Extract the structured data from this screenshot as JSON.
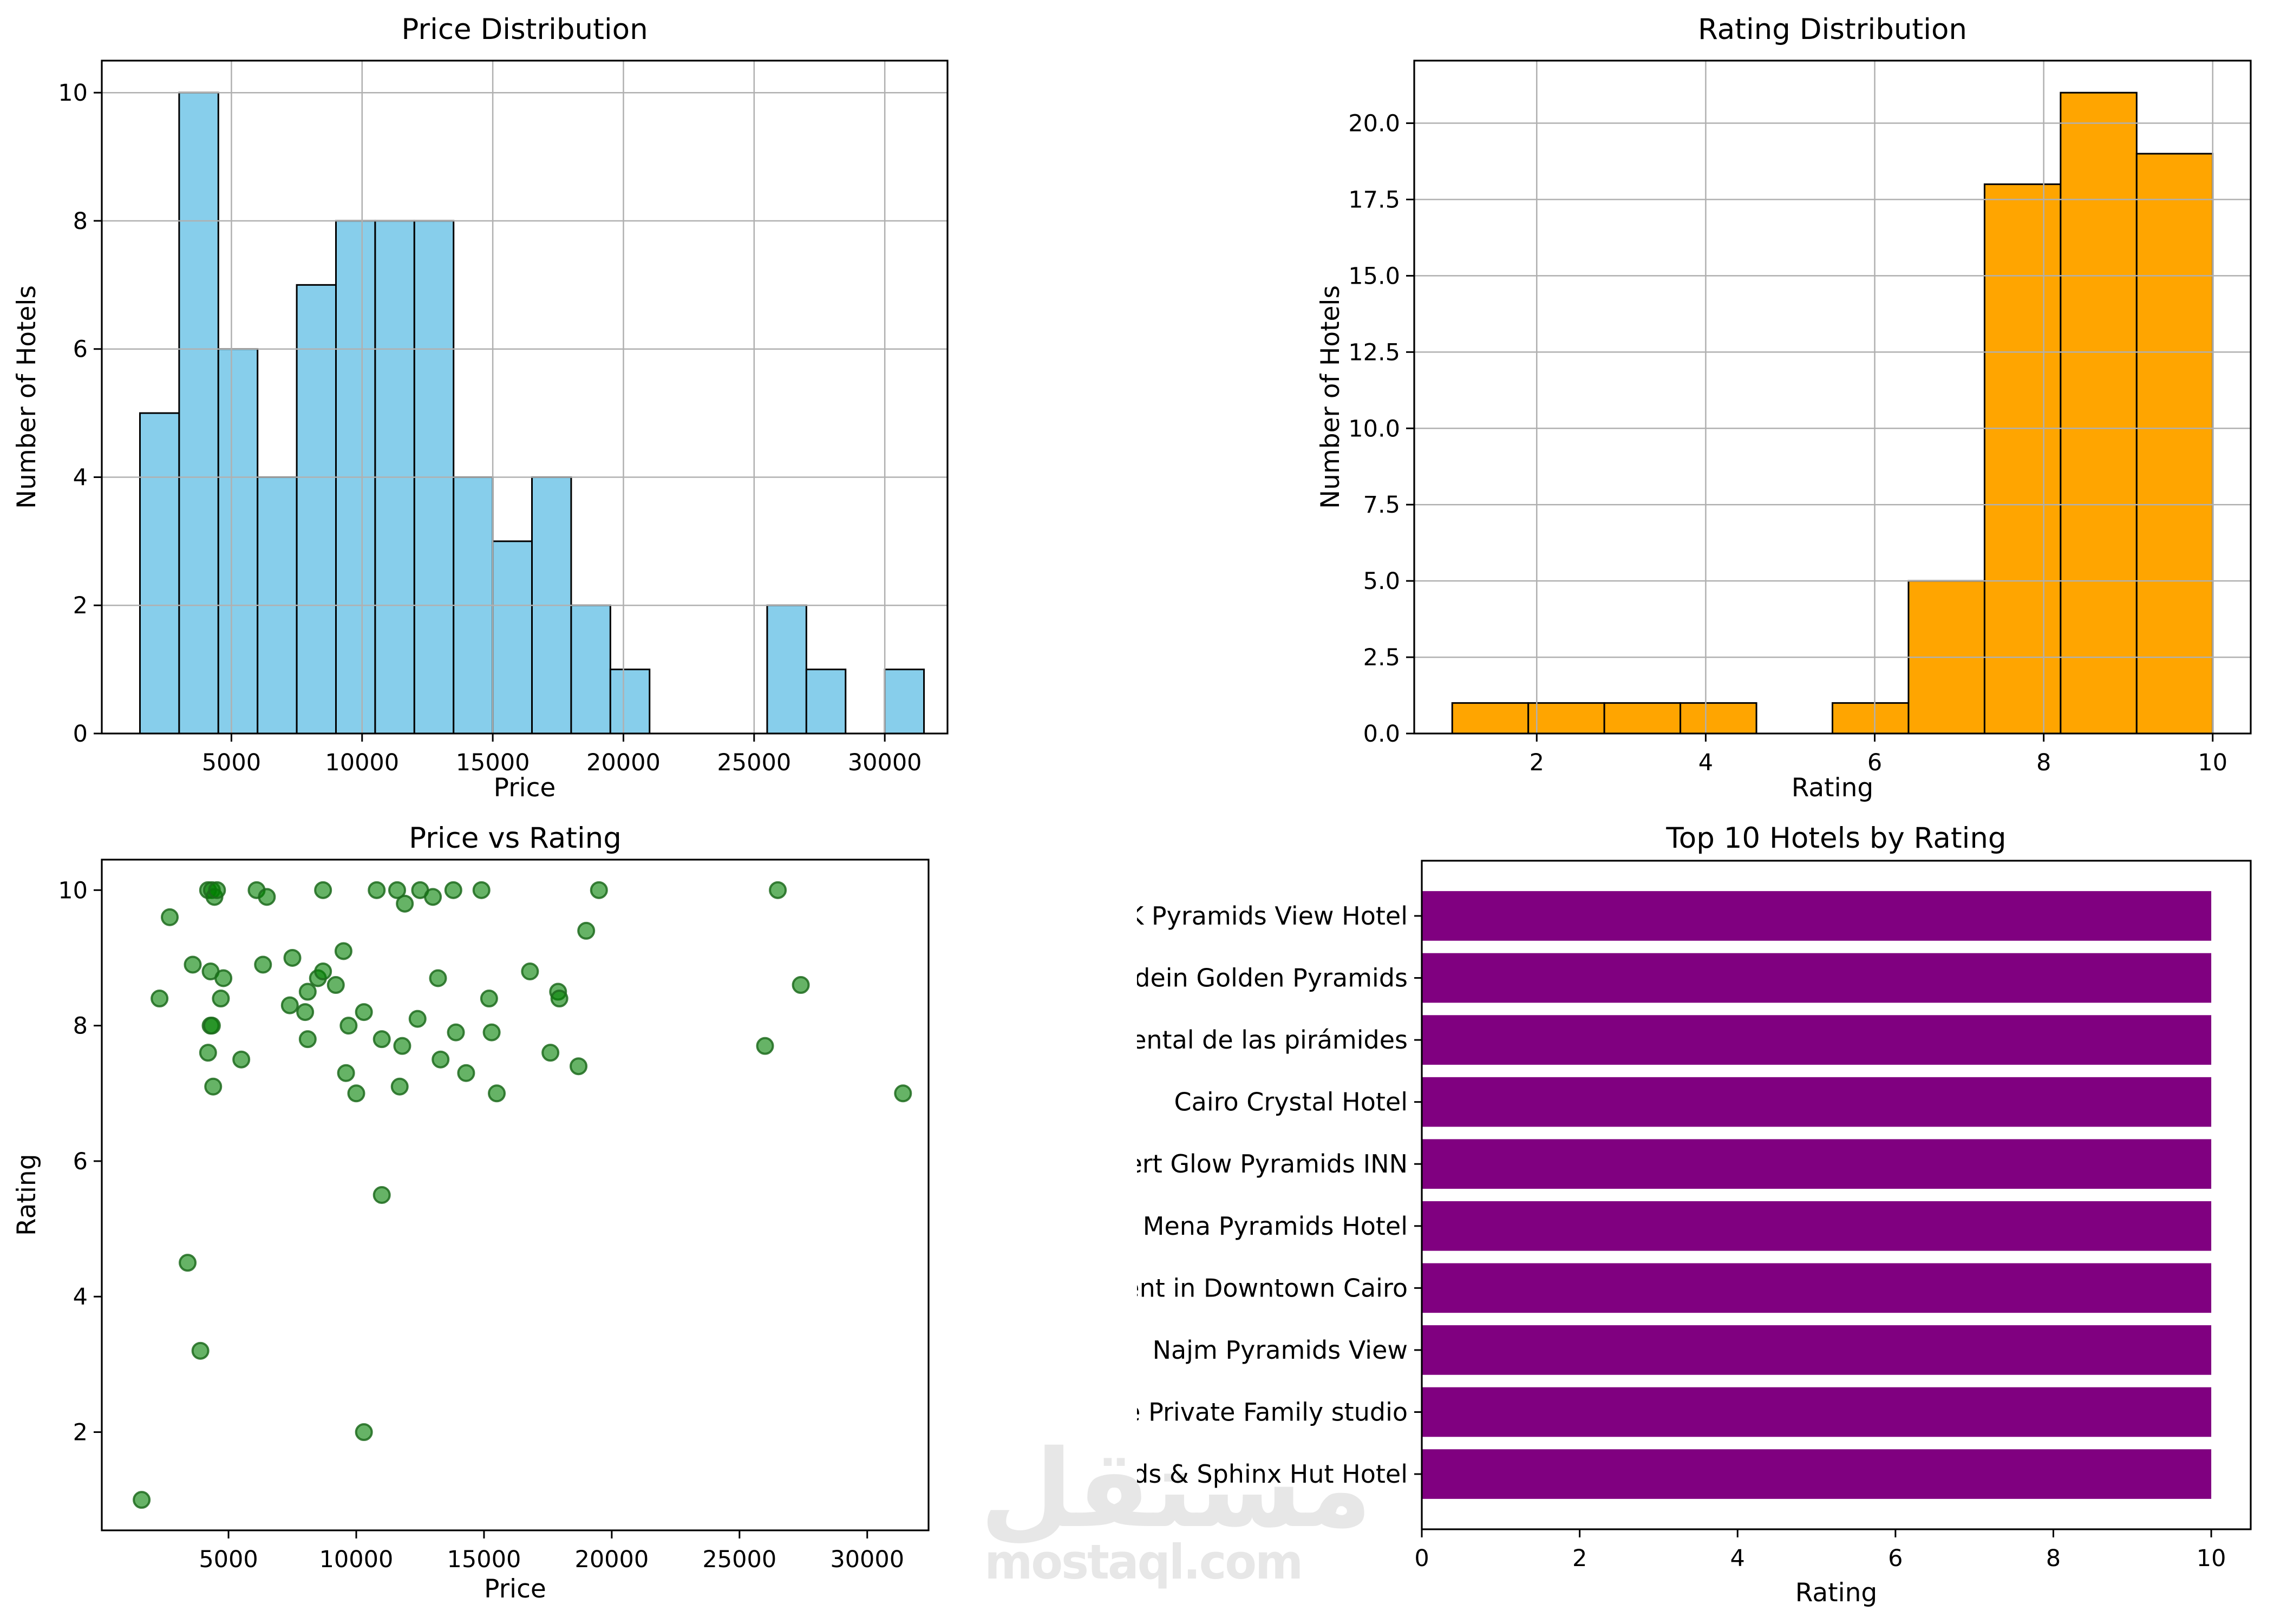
{
  "watermark": {
    "logo_text": "مستقل",
    "site_text": "mostaql.com"
  },
  "colors": {
    "hist_price_bar": "#87CEEB",
    "hist_rating_bar": "#FFA500",
    "scatter_point": "#008000",
    "barh_bar": "#800080",
    "grid": "#b0b0b0",
    "spine": "#000000",
    "watermark": "#e7e7e7"
  },
  "chart_data": [
    {
      "id": "price-hist",
      "type": "histogram",
      "title": "Price Distribution",
      "xlabel": "Price",
      "ylabel": "Number of Hotels",
      "bar_color": "#87CEEB",
      "edge_color": "#000000",
      "bin_start": 1500,
      "bin_width": 1500,
      "counts": [
        5,
        10,
        6,
        4,
        7,
        8,
        8,
        8,
        4,
        3,
        4,
        2,
        1,
        0,
        0,
        0,
        2,
        1,
        0,
        1
      ],
      "xlim": [
        40,
        32400
      ],
      "ylim": [
        0,
        10.5
      ],
      "xticks": {
        "values": [
          5000,
          10000,
          15000,
          20000,
          25000,
          30000
        ],
        "labels": [
          "5000",
          "10000",
          "15000",
          "20000",
          "25000",
          "30000"
        ]
      },
      "yticks": {
        "values": [
          0,
          2,
          4,
          6,
          8,
          10
        ],
        "labels": [
          "0",
          "2",
          "4",
          "6",
          "8",
          "10"
        ]
      },
      "grid": true
    },
    {
      "id": "rating-hist",
      "type": "histogram",
      "title": "Rating Distribution",
      "xlabel": "Rating",
      "ylabel": "Number of Hotels",
      "bar_color": "#FFA500",
      "edge_color": "#000000",
      "bin_start": 1.0,
      "bin_width": 0.9,
      "counts": [
        1,
        1,
        1,
        1,
        0,
        1,
        5,
        18,
        21,
        19
      ],
      "xlim": [
        0.55,
        10.45
      ],
      "ylim": [
        0,
        22.05
      ],
      "xticks": {
        "values": [
          2,
          4,
          6,
          8,
          10
        ],
        "labels": [
          "2",
          "4",
          "6",
          "8",
          "10"
        ]
      },
      "yticks": {
        "values": [
          0,
          2.5,
          5,
          7.5,
          10,
          12.5,
          15,
          17.5,
          20
        ],
        "labels": [
          "0.0",
          "2.5",
          "5.0",
          "7.5",
          "10.0",
          "12.5",
          "15.0",
          "17.5",
          "20.0"
        ]
      },
      "grid": true
    },
    {
      "id": "scatter",
      "type": "scatter",
      "title": "Price vs Rating",
      "xlabel": "Price",
      "ylabel": "Rating",
      "point_color": "#008000",
      "point_edge": "#1d6b1d",
      "point_opacity": 0.6,
      "points": [
        [
          4200,
          10
        ],
        [
          4350,
          10
        ],
        [
          4450,
          9.9
        ],
        [
          4550,
          10
        ],
        [
          6100,
          10
        ],
        [
          6500,
          9.9
        ],
        [
          8700,
          10
        ],
        [
          10800,
          10
        ],
        [
          11600,
          10
        ],
        [
          11900,
          9.8
        ],
        [
          12500,
          10
        ],
        [
          13000,
          9.9
        ],
        [
          13800,
          10
        ],
        [
          14900,
          10
        ],
        [
          19500,
          10
        ],
        [
          26500,
          10
        ],
        [
          2700,
          9.6
        ],
        [
          19000,
          9.4
        ],
        [
          9500,
          9.1
        ],
        [
          7500,
          9.0
        ],
        [
          6350,
          8.9
        ],
        [
          3600,
          8.9
        ],
        [
          4300,
          8.8
        ],
        [
          8500,
          8.7
        ],
        [
          8700,
          8.8
        ],
        [
          9200,
          8.6
        ],
        [
          16800,
          8.8
        ],
        [
          13200,
          8.7
        ],
        [
          4800,
          8.7
        ],
        [
          27400,
          8.6
        ],
        [
          8100,
          8.5
        ],
        [
          17900,
          8.5
        ],
        [
          17950,
          8.4
        ],
        [
          2300,
          8.4
        ],
        [
          4700,
          8.4
        ],
        [
          15200,
          8.4
        ],
        [
          7400,
          8.3
        ],
        [
          8000,
          8.2
        ],
        [
          10300,
          8.2
        ],
        [
          12400,
          8.1
        ],
        [
          4300,
          8.0
        ],
        [
          4350,
          8.0
        ],
        [
          9700,
          8.0
        ],
        [
          8100,
          7.8
        ],
        [
          11000,
          7.8
        ],
        [
          13900,
          7.9
        ],
        [
          15300,
          7.9
        ],
        [
          11800,
          7.7
        ],
        [
          26000,
          7.7
        ],
        [
          4200,
          7.6
        ],
        [
          17600,
          7.6
        ],
        [
          5500,
          7.5
        ],
        [
          13300,
          7.5
        ],
        [
          18700,
          7.4
        ],
        [
          9600,
          7.3
        ],
        [
          14300,
          7.3
        ],
        [
          4400,
          7.1
        ],
        [
          11700,
          7.1
        ],
        [
          10000,
          7.0
        ],
        [
          15500,
          7.0
        ],
        [
          31400,
          7.0
        ],
        [
          11000,
          5.5
        ],
        [
          3400,
          4.5
        ],
        [
          3900,
          3.2
        ],
        [
          10300,
          2.0
        ],
        [
          1600,
          1.0
        ]
      ],
      "xlim": [
        40,
        32400
      ],
      "ylim": [
        0.55,
        10.45
      ],
      "xticks": {
        "values": [
          5000,
          10000,
          15000,
          20000,
          25000,
          30000
        ],
        "labels": [
          "5000",
          "10000",
          "15000",
          "20000",
          "25000",
          "30000"
        ]
      },
      "yticks": {
        "values": [
          2,
          4,
          6,
          8,
          10
        ],
        "labels": [
          "2",
          "4",
          "6",
          "8",
          "10"
        ]
      },
      "grid": false
    },
    {
      "id": "top10",
      "type": "barh",
      "title": "Top 10 Hotels by Rating",
      "xlabel": "Rating",
      "bar_color": "#800080",
      "categories": [
        "FK Pyramids View Hotel",
        "Alaaeldein Golden Pyramids",
        "Continental de las pirámides",
        "Cairo Crystal Hotel",
        "Desert Glow Pyramids INN",
        "Mena Pyramids Hotel",
        "Hotel apartment in Downtown Cairo",
        "Najm Pyramids View",
        "Pyramids Sunrise Private Family studio",
        "Pyramids & Sphinx Hut Hotel"
      ],
      "values": [
        10,
        10,
        10,
        10,
        10,
        10,
        10,
        10,
        10,
        10
      ],
      "xlim": [
        0,
        10.5
      ],
      "xticks": {
        "values": [
          0,
          2,
          4,
          6,
          8,
          10
        ],
        "labels": [
          "0",
          "2",
          "4",
          "6",
          "8",
          "10"
        ]
      },
      "grid": false
    }
  ]
}
